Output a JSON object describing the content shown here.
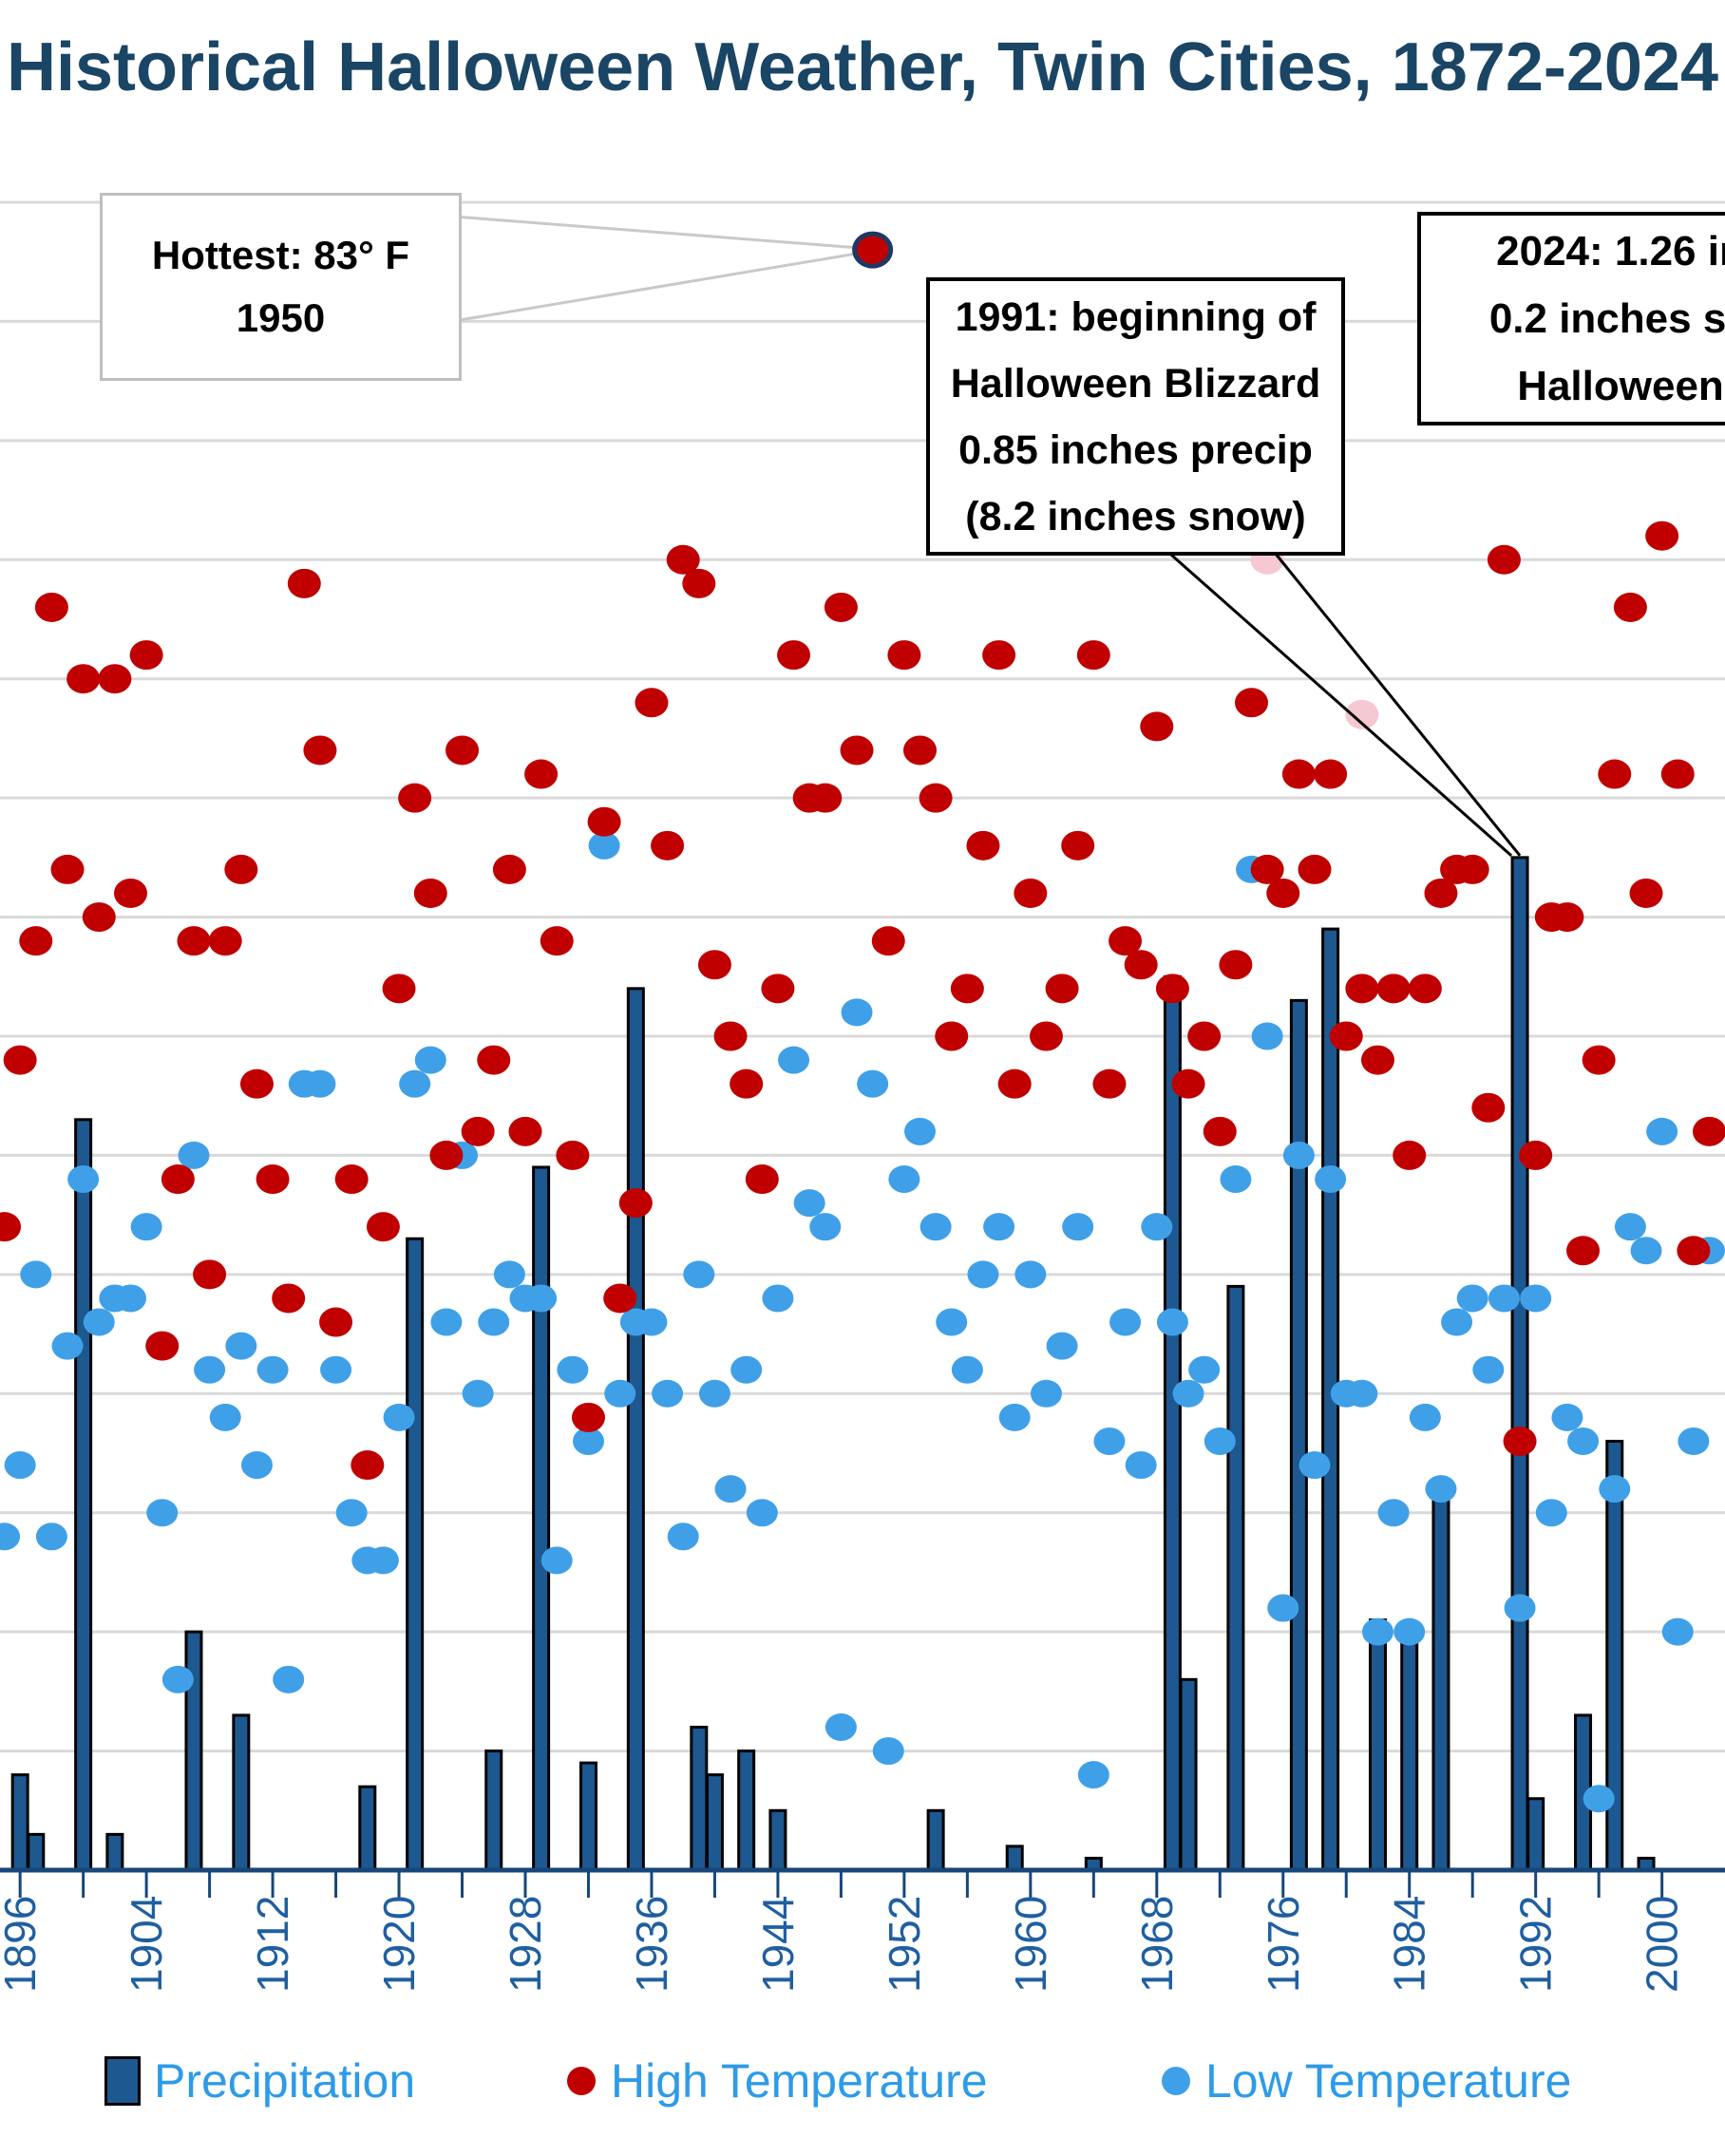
{
  "title": "Historical Halloween Weather, Twin Cities, 1872-2024",
  "annotations": {
    "hottest": {
      "line1": "Hottest: 83° F",
      "line2": "1950",
      "target_year": 1950,
      "target_value_f": 83
    },
    "blizzard": {
      "line1": "1991: beginning of",
      "line2": "Halloween Blizzard",
      "line3": "0.85 inches precip",
      "line4": "(8.2 inches snow)",
      "target_year": 1991
    },
    "y2024": {
      "line1": "2024: 1.26  in",
      "line2": "0.2 inches sn",
      "line3": "Halloween"
    }
  },
  "legend": {
    "items": [
      {
        "label": "Precipitation",
        "marker": "bar-swatch",
        "color": "#1D5890"
      },
      {
        "label": "High Temperature",
        "marker": "red-dot",
        "color": "#C00000"
      },
      {
        "label": "Low Temperature",
        "marker": "blue-dot",
        "color": "#3FA0E8"
      }
    ],
    "text_color": "#2D9BE8"
  },
  "colors": {
    "title": "#1A4565",
    "axis": "#17477A",
    "tick_label": "#1F5FA0",
    "gridline": "#D9D9D9",
    "bar_fill": "#1D5890",
    "bar_border": "#000000",
    "high_temp": "#C00000",
    "low_temp": "#3FA0E8",
    "faded_point": "#F5C8D2",
    "hottest_ring": "#1F3864",
    "callout_gray": "#C9C9C9",
    "callout_black": "#000000"
  },
  "chart_data": {
    "type": "composite",
    "title": "Historical Halloween Weather, Twin Cities, 1872-2024",
    "x_axis": {
      "tick_label_years": [
        "1896",
        "1904",
        "1912",
        "1920",
        "1928",
        "1936",
        "1944",
        "1952",
        "1960",
        "1968",
        "1976",
        "1984",
        "1992",
        "2000"
      ],
      "label_step_years": 8,
      "minor_tick_step_years": 4,
      "visible_year_min": 1895,
      "visible_year_max": 2003
    },
    "y_axis_temperature_f": {
      "top": 85,
      "bottom": 15,
      "gridline_step": 5,
      "grid_on": true
    },
    "y_axis_precip_in": {
      "top": 1.4,
      "bottom": 0,
      "gridline_step": 0.1
    },
    "legend_position": "bottom",
    "highlight": {
      "year": 1950,
      "high_f": 83
    },
    "series": [
      {
        "name": "Precipitation",
        "type": "bar",
        "unit": "inches",
        "points": [
          [
            1896,
            0.08
          ],
          [
            1897,
            0.03
          ],
          [
            1900,
            0.63
          ],
          [
            1902,
            0.03
          ],
          [
            1907,
            0.2
          ],
          [
            1910,
            0.13
          ],
          [
            1918,
            0.07
          ],
          [
            1921,
            0.53
          ],
          [
            1926,
            0.1
          ],
          [
            1929,
            0.59
          ],
          [
            1932,
            0.09
          ],
          [
            1935,
            0.74
          ],
          [
            1939,
            0.12
          ],
          [
            1940,
            0.08
          ],
          [
            1942,
            0.1
          ],
          [
            1944,
            0.05
          ],
          [
            1954,
            0.05
          ],
          [
            1959,
            0.02
          ],
          [
            1964,
            0.01
          ],
          [
            1969,
            0.75
          ],
          [
            1970,
            0.16
          ],
          [
            1973,
            0.49
          ],
          [
            1977,
            0.73
          ],
          [
            1979,
            0.79
          ],
          [
            1982,
            0.21
          ],
          [
            1984,
            0.19
          ],
          [
            1986,
            0.32
          ],
          [
            1991,
            0.85
          ],
          [
            1992,
            0.06
          ],
          [
            1995,
            0.13
          ],
          [
            1997,
            0.36
          ],
          [
            1999,
            0.01
          ]
        ]
      },
      {
        "name": "High Temperature",
        "type": "scatter",
        "unit": "F",
        "points": [
          [
            1895,
            42
          ],
          [
            1896,
            49
          ],
          [
            1897,
            54
          ],
          [
            1898,
            68
          ],
          [
            1899,
            57
          ],
          [
            1900,
            65
          ],
          [
            1901,
            55
          ],
          [
            1902,
            65
          ],
          [
            1903,
            56
          ],
          [
            1904,
            66
          ],
          [
            1905,
            37
          ],
          [
            1906,
            44
          ],
          [
            1907,
            54
          ],
          [
            1908,
            40
          ],
          [
            1909,
            54
          ],
          [
            1910,
            57
          ],
          [
            1911,
            48
          ],
          [
            1912,
            44
          ],
          [
            1913,
            39
          ],
          [
            1914,
            69
          ],
          [
            1915,
            62
          ],
          [
            1916,
            38
          ],
          [
            1917,
            44
          ],
          [
            1918,
            32
          ],
          [
            1919,
            42
          ],
          [
            1920,
            52
          ],
          [
            1921,
            60
          ],
          [
            1922,
            56
          ],
          [
            1923,
            45
          ],
          [
            1924,
            62
          ],
          [
            1925,
            46
          ],
          [
            1926,
            49
          ],
          [
            1927,
            57
          ],
          [
            1928,
            46
          ],
          [
            1929,
            61
          ],
          [
            1930,
            54
          ],
          [
            1931,
            45
          ],
          [
            1932,
            34
          ],
          [
            1933,
            59
          ],
          [
            1934,
            39
          ],
          [
            1935,
            43
          ],
          [
            1936,
            64
          ],
          [
            1937,
            58
          ],
          [
            1938,
            70
          ],
          [
            1939,
            69
          ],
          [
            1940,
            53
          ],
          [
            1941,
            50
          ],
          [
            1942,
            48
          ],
          [
            1943,
            44
          ],
          [
            1944,
            52
          ],
          [
            1945,
            66
          ],
          [
            1946,
            60
          ],
          [
            1947,
            60
          ],
          [
            1948,
            68
          ],
          [
            1949,
            62
          ],
          [
            1950,
            83
          ],
          [
            1951,
            54
          ],
          [
            1952,
            66
          ],
          [
            1953,
            62
          ],
          [
            1954,
            60
          ],
          [
            1955,
            50
          ],
          [
            1956,
            52
          ],
          [
            1957,
            58
          ],
          [
            1958,
            66
          ],
          [
            1959,
            48
          ],
          [
            1960,
            56
          ],
          [
            1961,
            50
          ],
          [
            1962,
            52
          ],
          [
            1963,
            58
          ],
          [
            1964,
            66
          ],
          [
            1965,
            48
          ],
          [
            1966,
            54
          ],
          [
            1967,
            53
          ],
          [
            1968,
            63
          ],
          [
            1969,
            52
          ],
          [
            1970,
            48
          ],
          [
            1971,
            50
          ],
          [
            1972,
            46
          ],
          [
            1973,
            53
          ],
          [
            1974,
            64
          ],
          [
            1975,
            57
          ],
          [
            1976,
            56
          ],
          [
            1977,
            61
          ],
          [
            1978,
            57
          ],
          [
            1979,
            61
          ],
          [
            1980,
            50
          ],
          [
            1981,
            52
          ],
          [
            1982,
            49
          ],
          [
            1983,
            52
          ],
          [
            1984,
            45
          ],
          [
            1985,
            52
          ],
          [
            1986,
            56
          ],
          [
            1987,
            57
          ],
          [
            1988,
            57
          ],
          [
            1989,
            47
          ],
          [
            1990,
            70
          ],
          [
            1991,
            33
          ],
          [
            1992,
            45
          ],
          [
            1993,
            55
          ],
          [
            1994,
            55
          ],
          [
            1995,
            41
          ],
          [
            1996,
            49
          ],
          [
            1997,
            61
          ],
          [
            1998,
            68
          ],
          [
            1999,
            56
          ],
          [
            2000,
            71
          ],
          [
            2001,
            61
          ],
          [
            2002,
            41
          ],
          [
            2003,
            46
          ]
        ]
      },
      {
        "name": "Low Temperature",
        "type": "scatter",
        "unit": "F",
        "points": [
          [
            1895,
            29
          ],
          [
            1896,
            32
          ],
          [
            1897,
            40
          ],
          [
            1898,
            29
          ],
          [
            1899,
            37
          ],
          [
            1900,
            44
          ],
          [
            1901,
            38
          ],
          [
            1902,
            39
          ],
          [
            1903,
            39
          ],
          [
            1904,
            42
          ],
          [
            1905,
            30
          ],
          [
            1906,
            23
          ],
          [
            1907,
            45
          ],
          [
            1908,
            36
          ],
          [
            1909,
            34
          ],
          [
            1910,
            37
          ],
          [
            1911,
            32
          ],
          [
            1912,
            36
          ],
          [
            1913,
            23
          ],
          [
            1914,
            48
          ],
          [
            1915,
            48
          ],
          [
            1916,
            36
          ],
          [
            1917,
            30
          ],
          [
            1918,
            28
          ],
          [
            1919,
            28
          ],
          [
            1920,
            34
          ],
          [
            1921,
            48
          ],
          [
            1922,
            49
          ],
          [
            1923,
            38
          ],
          [
            1924,
            45
          ],
          [
            1925,
            35
          ],
          [
            1926,
            38
          ],
          [
            1927,
            40
          ],
          [
            1928,
            39
          ],
          [
            1929,
            39
          ],
          [
            1930,
            28
          ],
          [
            1931,
            36
          ],
          [
            1932,
            33
          ],
          [
            1933,
            58
          ],
          [
            1934,
            35
          ],
          [
            1935,
            38
          ],
          [
            1936,
            38
          ],
          [
            1937,
            35
          ],
          [
            1938,
            29
          ],
          [
            1939,
            40
          ],
          [
            1940,
            35
          ],
          [
            1941,
            31
          ],
          [
            1942,
            36
          ],
          [
            1943,
            30
          ],
          [
            1944,
            39
          ],
          [
            1945,
            49
          ],
          [
            1946,
            43
          ],
          [
            1947,
            42
          ],
          [
            1948,
            21
          ],
          [
            1949,
            51
          ],
          [
            1950,
            48
          ],
          [
            1951,
            20
          ],
          [
            1952,
            44
          ],
          [
            1953,
            46
          ],
          [
            1954,
            42
          ],
          [
            1955,
            38
          ],
          [
            1956,
            36
          ],
          [
            1957,
            40
          ],
          [
            1958,
            42
          ],
          [
            1959,
            34
          ],
          [
            1960,
            40
          ],
          [
            1961,
            35
          ],
          [
            1962,
            37
          ],
          [
            1963,
            42
          ],
          [
            1964,
            19
          ],
          [
            1965,
            33
          ],
          [
            1966,
            38
          ],
          [
            1967,
            32
          ],
          [
            1968,
            42
          ],
          [
            1969,
            38
          ],
          [
            1970,
            35
          ],
          [
            1971,
            36
          ],
          [
            1972,
            33
          ],
          [
            1973,
            44
          ],
          [
            1974,
            57
          ],
          [
            1975,
            50
          ],
          [
            1976,
            26
          ],
          [
            1977,
            45
          ],
          [
            1978,
            32
          ],
          [
            1979,
            44
          ],
          [
            1980,
            35
          ],
          [
            1981,
            35
          ],
          [
            1982,
            25
          ],
          [
            1983,
            30
          ],
          [
            1984,
            25
          ],
          [
            1985,
            34
          ],
          [
            1986,
            31
          ],
          [
            1987,
            38
          ],
          [
            1988,
            39
          ],
          [
            1989,
            36
          ],
          [
            1990,
            39
          ],
          [
            1991,
            26
          ],
          [
            1992,
            39
          ],
          [
            1993,
            30
          ],
          [
            1994,
            34
          ],
          [
            1995,
            33
          ],
          [
            1996,
            18
          ],
          [
            1997,
            31
          ],
          [
            1998,
            42
          ],
          [
            1999,
            41
          ],
          [
            2000,
            46
          ],
          [
            2001,
            25
          ],
          [
            2002,
            33
          ],
          [
            2003,
            41
          ]
        ]
      }
    ],
    "faded_points": [
      {
        "year": 1975,
        "value_f": 70
      },
      {
        "year": 1981,
        "value_f": 63.5
      }
    ]
  }
}
